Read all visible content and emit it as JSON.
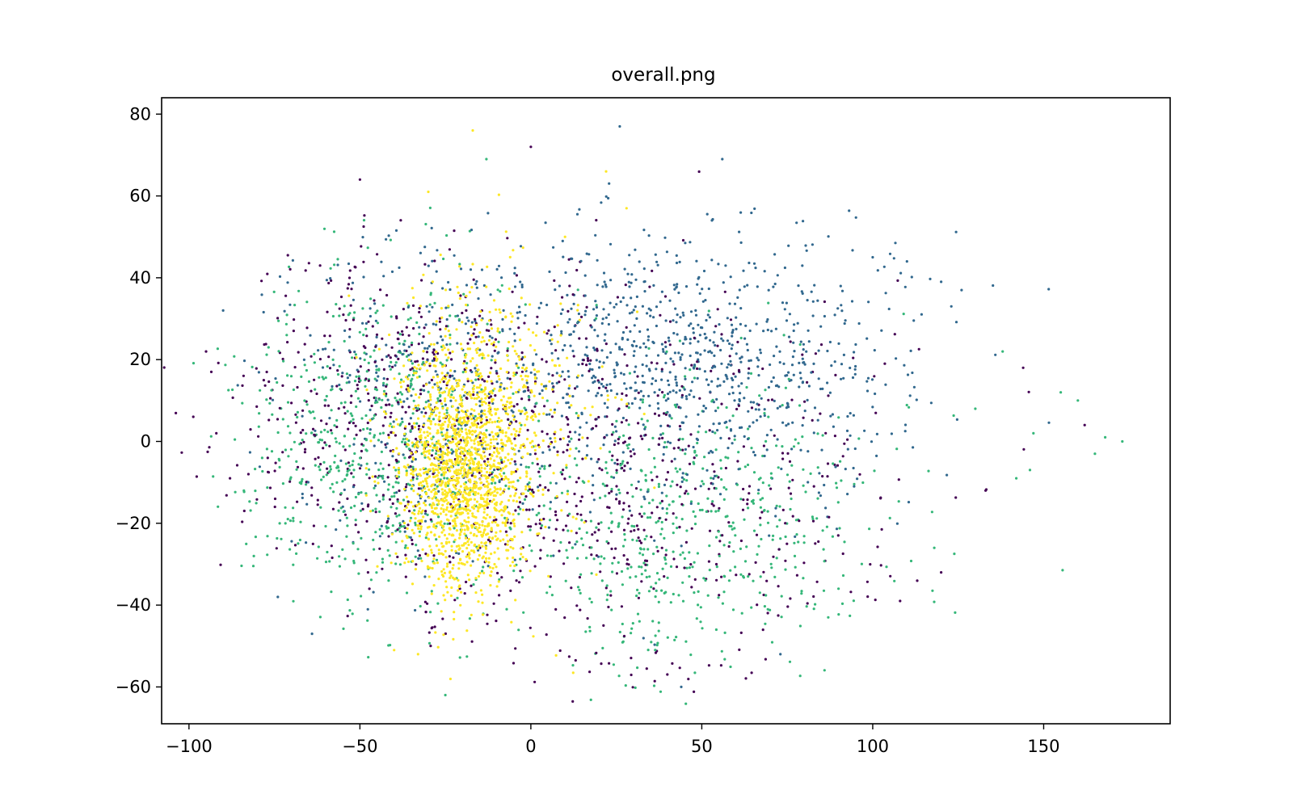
{
  "chart_data": {
    "type": "scatter",
    "title": "overall.png",
    "xlabel": "",
    "ylabel": "",
    "xlim": [
      -108,
      187
    ],
    "ylim": [
      -69,
      84
    ],
    "xticks": [
      -100,
      -50,
      0,
      50,
      100,
      150
    ],
    "yticks": [
      -60,
      -40,
      -20,
      0,
      20,
      40,
      60,
      80
    ],
    "xtick_labels": [
      "−100",
      "−50",
      "0",
      "50",
      "100",
      "150"
    ],
    "ytick_labels": [
      "−60",
      "−40",
      "−20",
      "0",
      "20",
      "40",
      "60",
      "80"
    ],
    "grid": false,
    "legend": "none",
    "series": [
      {
        "color": "#440154",
        "clusters": [
          {
            "cx": 20,
            "cy": -10,
            "sx": 40,
            "sy": 24,
            "n": 700
          },
          {
            "cx": -40,
            "cy": 10,
            "sx": 22,
            "sy": 20,
            "n": 400
          }
        ],
        "points": [
          {
            "x": -95,
            "y": 22
          },
          {
            "x": -92,
            "y": 2
          },
          {
            "x": -88,
            "y": -9
          },
          {
            "x": 120,
            "y": -32
          },
          {
            "x": 108,
            "y": -39
          },
          {
            "x": 144,
            "y": 18
          },
          {
            "x": 133,
            "y": -12
          },
          {
            "x": 162,
            "y": 4
          },
          {
            "x": -50,
            "y": 64
          },
          {
            "x": 0,
            "y": 72
          }
        ]
      },
      {
        "color": "#31688e",
        "clusters": [
          {
            "cx": 45,
            "cy": 20,
            "sx": 32,
            "sy": 17,
            "n": 900
          },
          {
            "cx": -30,
            "cy": 10,
            "sx": 22,
            "sy": 20,
            "n": 350
          }
        ],
        "points": [
          {
            "x": -90,
            "y": 32
          },
          {
            "x": 26,
            "y": 77
          },
          {
            "x": 56,
            "y": 69
          },
          {
            "x": 120,
            "y": 39
          },
          {
            "x": 126,
            "y": 37
          },
          {
            "x": 100,
            "y": 45
          },
          {
            "x": 110,
            "y": 44
          },
          {
            "x": 123,
            "y": 33
          },
          {
            "x": -74,
            "y": -38
          },
          {
            "x": -64,
            "y": -47
          },
          {
            "x": 44,
            "y": -60
          },
          {
            "x": 73,
            "y": -52
          }
        ]
      },
      {
        "color": "#35b779",
        "clusters": [
          {
            "cx": -45,
            "cy": 0,
            "sx": 20,
            "sy": 20,
            "n": 650
          },
          {
            "cx": 45,
            "cy": -20,
            "sx": 28,
            "sy": 18,
            "n": 600
          }
        ],
        "points": [
          {
            "x": 155,
            "y": 12
          },
          {
            "x": 160,
            "y": 10
          },
          {
            "x": 165,
            "y": -3
          },
          {
            "x": 168,
            "y": 1
          },
          {
            "x": 173,
            "y": 0
          },
          {
            "x": 147,
            "y": 2
          },
          {
            "x": 138,
            "y": 22
          },
          {
            "x": 146,
            "y": -7
          },
          {
            "x": 130,
            "y": 8
          },
          {
            "x": -25,
            "y": -62
          },
          {
            "x": -13,
            "y": 69
          },
          {
            "x": 87,
            "y": -43
          },
          {
            "x": 118,
            "y": -26
          },
          {
            "x": 90,
            "y": -36
          },
          {
            "x": 142,
            "y": -9
          }
        ]
      },
      {
        "color": "#fde725",
        "clusters": [
          {
            "cx": -20,
            "cy": -8,
            "sx": 9,
            "sy": 14,
            "n": 1400
          },
          {
            "cx": -10,
            "cy": 10,
            "sx": 16,
            "sy": 18,
            "n": 350
          }
        ],
        "points": [
          {
            "x": -17,
            "y": 76
          },
          {
            "x": -30,
            "y": 61
          },
          {
            "x": 22,
            "y": 66
          },
          {
            "x": -40,
            "y": -51
          },
          {
            "x": -33,
            "y": -52
          },
          {
            "x": 10,
            "y": 50
          },
          {
            "x": 28,
            "y": 57
          }
        ]
      }
    ]
  }
}
